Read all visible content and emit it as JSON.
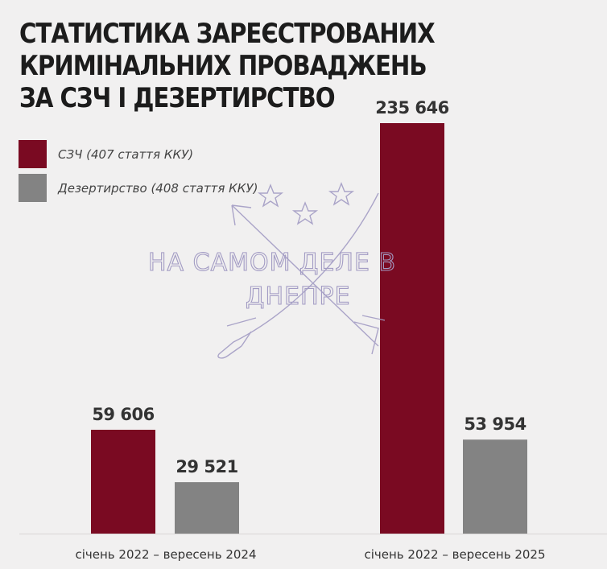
{
  "title_lines": [
    "СТАТИСТИКА ЗАРЕЄСТРОВАНИХ",
    "КРИМІНАЛЬНИХ ПРОВАДЖЕНЬ",
    "ЗА СЗЧ І ДЕЗЕРТИРСТВО"
  ],
  "legend": [
    {
      "label": "СЗЧ (407 стаття ККУ)",
      "color": "#7a0a22"
    },
    {
      "label": "Дезертирство (408 стаття ККУ)",
      "color": "#838383"
    }
  ],
  "watermark": {
    "line1": "НА САМОМ ДЕЛЕ В",
    "line2": "ДНЕПРЕ"
  },
  "chart_data": {
    "type": "bar",
    "title": "СТАТИСТИКА ЗАРЕЄСТРОВАНИХ КРИМІНАЛЬНИХ ПРОВАДЖЕНЬ ЗА СЗЧ І ДЕЗЕРТИРСТВО",
    "categories": [
      "січень 2022 – вересень 2024",
      "січень 2022 – вересень 2025"
    ],
    "series": [
      {
        "name": "СЗЧ (407 стаття ККУ)",
        "color": "#7a0a22",
        "values": [
          59606,
          235646
        ],
        "labels": [
          "59 606",
          "235 646"
        ]
      },
      {
        "name": "Дезертирство (408 стаття ККУ)",
        "color": "#838383",
        "values": [
          29521,
          53954
        ],
        "labels": [
          "29 521",
          "53 954"
        ]
      }
    ],
    "xlabel": "",
    "ylabel": "",
    "grid": false,
    "legend_position": "top-left"
  }
}
